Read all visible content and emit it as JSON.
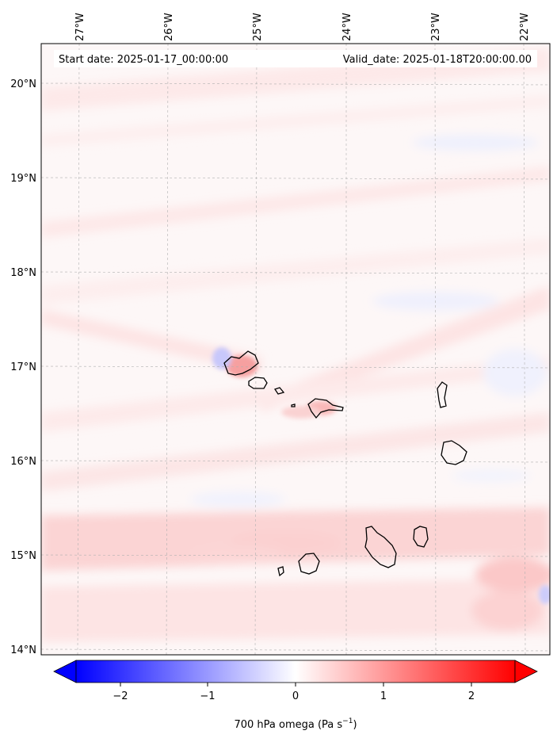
{
  "map": {
    "start_label": "Start date: 2025-01-17_00:00:00",
    "valid_label": "Valid_date: 2025-01-18T20:00:00.00",
    "lon_ticks": [
      "27°W",
      "26°W",
      "25°W",
      "24°W",
      "23°W",
      "22°W"
    ],
    "lat_ticks": [
      "20°N",
      "19°N",
      "18°N",
      "17°N",
      "16°N",
      "15°N",
      "14°N"
    ],
    "gridlines": true
  },
  "colorbar": {
    "ticks": [
      "−2",
      "−1",
      "0",
      "1",
      "2"
    ],
    "label_prefix": "700 hPa omega (Pa s",
    "label_exponent": "−1",
    "label_suffix": ")",
    "colormap": "bwr",
    "min_color": "#0000ff",
    "mid_color": "#ffffff",
    "max_color": "#ff0000"
  }
}
